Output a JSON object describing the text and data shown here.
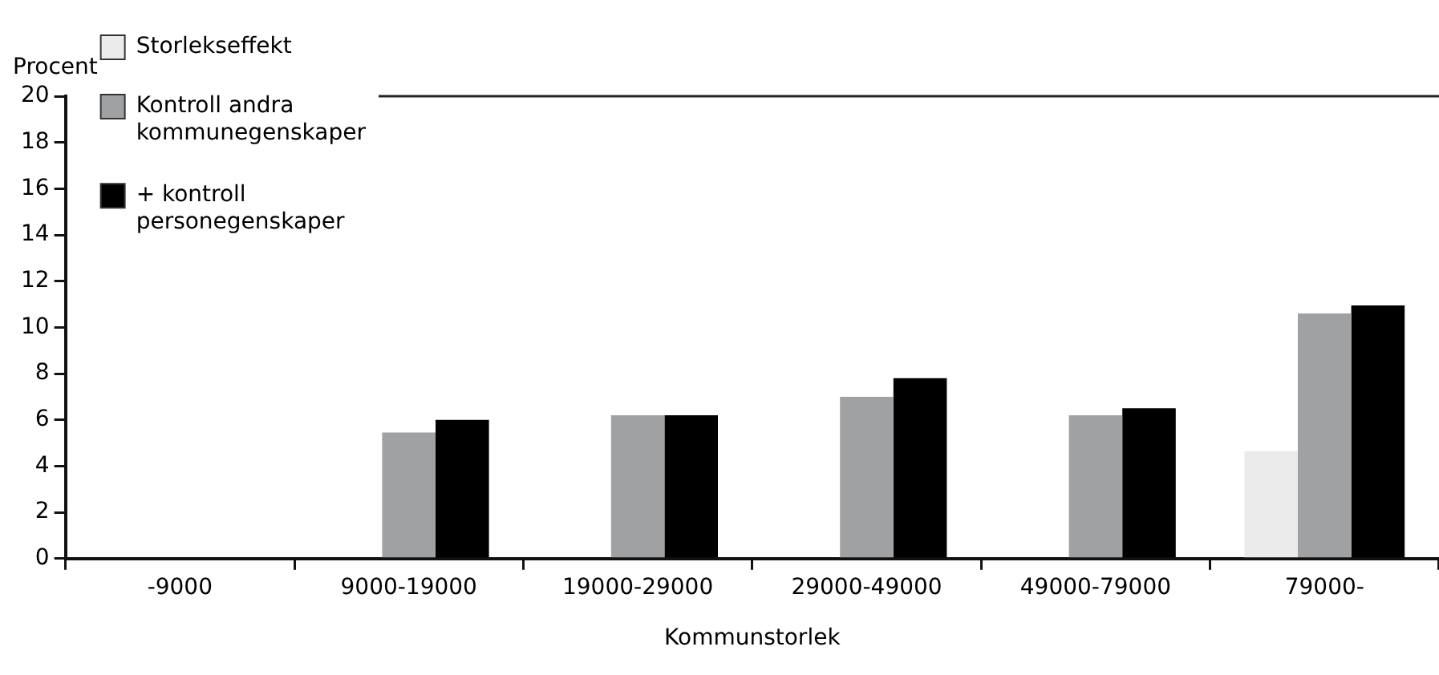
{
  "chart_data": {
    "type": "bar",
    "xlabel": "Kommunstorlek",
    "ylabel": "Procent",
    "categories": [
      "-9000",
      "9000-19000",
      "19000-29000",
      "29000-49000",
      "49000-79000",
      "79000-"
    ],
    "series": [
      {
        "name": "Storlekseffekt",
        "color": "#ebebeb",
        "values": [
          0,
          0,
          0,
          0,
          0,
          4.65
        ]
      },
      {
        "name": "Kontroll andra kommunegenskaper",
        "color": "#a0a1a3",
        "values": [
          0,
          5.45,
          6.2,
          7.0,
          6.2,
          10.6
        ]
      },
      {
        "name": "+ kontroll personegenskaper",
        "color": "#000000",
        "values": [
          0,
          6.0,
          6.2,
          7.8,
          6.5,
          10.95
        ]
      }
    ],
    "ylim": [
      0,
      20
    ],
    "yticks": [
      0,
      2,
      4,
      6,
      8,
      10,
      12,
      14,
      16,
      18,
      20
    ],
    "grid": false,
    "legend": "top left"
  }
}
